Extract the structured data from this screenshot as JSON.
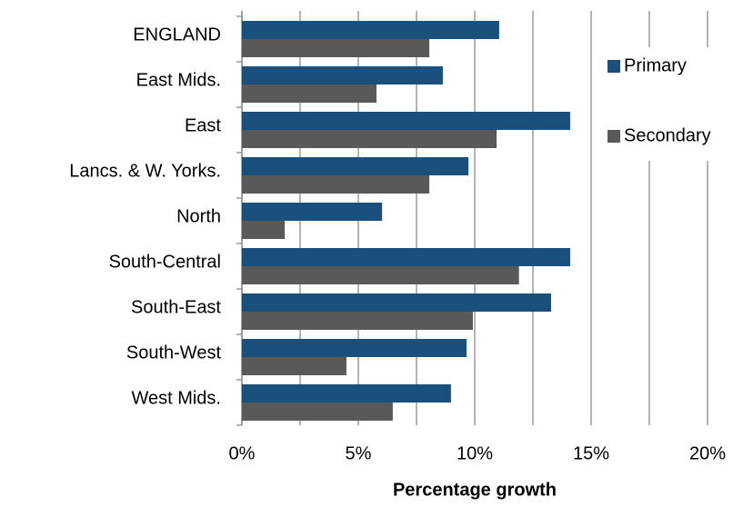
{
  "chart_data": {
    "type": "bar",
    "orientation": "horizontal",
    "x_label": "Percentage growth",
    "categories": [
      "ENGLAND",
      "East Mids.",
      "East",
      "Lancs. & W. Yorks.",
      "North",
      "South-Central",
      "South-East",
      "South-West",
      "West Mids."
    ],
    "series": [
      {
        "name": "Primary",
        "color": "#1b4f7c",
        "values": [
          11.05,
          8.63,
          14.1,
          9.73,
          6.02,
          14.1,
          13.28,
          9.65,
          8.98
        ]
      },
      {
        "name": "Secondary",
        "color": "#595959",
        "values": [
          8.05,
          5.78,
          10.94,
          8.05,
          1.84,
          11.9,
          9.92,
          4.49,
          6.48
        ]
      }
    ],
    "xlim": [
      0,
      20
    ],
    "xticks": [
      {
        "value": 0,
        "label": "0%"
      },
      {
        "value": 5,
        "label": "5%"
      },
      {
        "value": 10,
        "label": "10%"
      },
      {
        "value": 15,
        "label": "15%"
      },
      {
        "value": 20,
        "label": "20%"
      }
    ],
    "minor_xticks": [
      2.5,
      7.5,
      12.5,
      17.5
    ],
    "grid": true,
    "legend": "right"
  }
}
